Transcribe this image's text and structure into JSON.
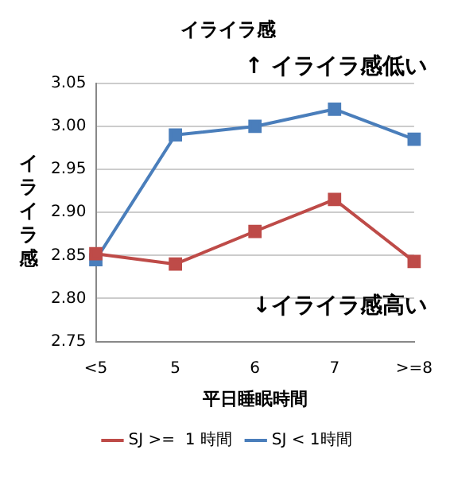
{
  "chart_data": {
    "type": "line",
    "title": "イライラ感",
    "xlabel": "平日睡眠時間",
    "ylabel": "イライラ感",
    "categories": [
      "<5",
      "5",
      "6",
      "7",
      ">=8"
    ],
    "series": [
      {
        "name": "SJ < 1時間",
        "color": "#4a7ebb",
        "values": [
          2.845,
          2.99,
          3.0,
          3.02,
          2.985
        ]
      },
      {
        "name": "SJ >=  1 時間",
        "color": "#be4b48",
        "values": [
          2.852,
          2.84,
          2.878,
          2.915,
          2.843
        ]
      }
    ],
    "ylim": [
      2.75,
      3.05
    ],
    "yticks": [
      2.75,
      {
        "value": 2.8,
        "label": "2.80"
      },
      2.85,
      {
        "value": 2.9,
        "label": "2.90"
      },
      2.95,
      {
        "value": 3.0,
        "label": "3.00"
      },
      3.05
    ],
    "grid": "y",
    "legend": "bottom",
    "marker": "square",
    "line_style": "solid",
    "annotations": [
      "↑ イライラ感低い",
      "↓イライラ感高い"
    ]
  }
}
